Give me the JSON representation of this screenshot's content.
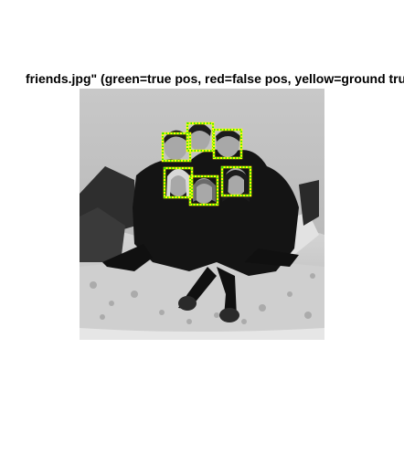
{
  "figure": {
    "title": "friends.jpg\" (green=true pos, red=false pos, yellow=ground truth)"
  },
  "legend_colors": {
    "true_positive": "#00e000",
    "false_positive": "#ff0000",
    "ground_truth": "#ffff00"
  },
  "photo": {
    "icon": "group-photo-grayscale",
    "ground_truth_faces": 6,
    "true_positive_detections": 6,
    "false_positive_detections": 0
  }
}
